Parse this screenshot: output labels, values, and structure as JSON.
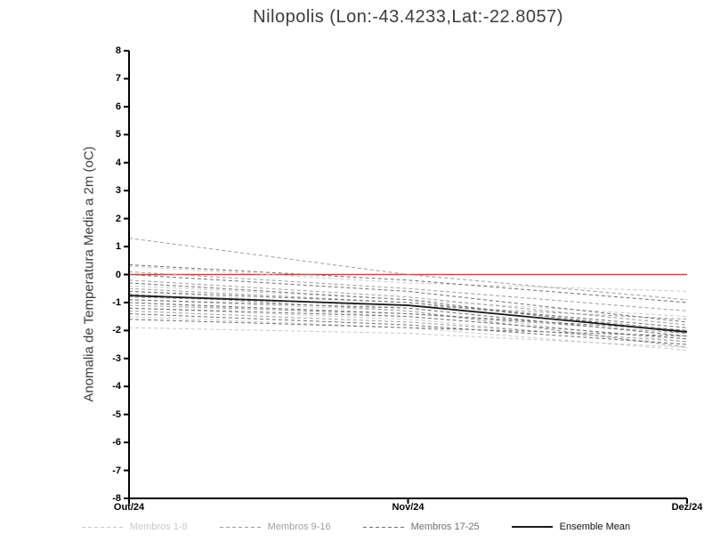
{
  "colors": {
    "zero_line": "#e23c32",
    "mean": "#1a1a1a",
    "group1": "#c9c9c9",
    "group2": "#9e9e9e",
    "group3": "#707070",
    "axis": "#000000"
  },
  "chart_data": {
    "type": "line",
    "title": "Nilopolis (Lon:-43.4233,Lat:-22.8057)",
    "ylabel": "Anomalia de Temperatura Media a 2m (oC)",
    "x_categories": [
      "Out/24",
      "Nov/24",
      "Dez/24"
    ],
    "ylim": [
      -8,
      8
    ],
    "ytick_step": 1,
    "zero_line": 0,
    "grid": false,
    "legend_position": "bottom",
    "groups": [
      {
        "name": "Membros 1-8",
        "color_key": "group1",
        "style": "dashed",
        "series": [
          [
            0.3,
            -0.3,
            -0.6
          ],
          [
            -0.4,
            -0.9,
            -1.5
          ],
          [
            -0.9,
            -1.3,
            -2.4
          ],
          [
            -1.2,
            -1.6,
            -2.5
          ],
          [
            -1.9,
            -2.1,
            -2.6
          ],
          [
            -1.5,
            -1.9,
            -2.7
          ],
          [
            -0.6,
            -1.2,
            -2.2
          ],
          [
            -1.0,
            -1.5,
            -2.3
          ]
        ]
      },
      {
        "name": "Membros 9-16",
        "color_key": "group2",
        "style": "dashed",
        "series": [
          [
            1.3,
            0.0,
            -0.9
          ],
          [
            0.1,
            -0.5,
            -1.3
          ],
          [
            -0.2,
            -0.8,
            -1.8
          ],
          [
            -0.5,
            -1.0,
            -2.0
          ],
          [
            -0.8,
            -1.1,
            -1.6
          ],
          [
            -1.1,
            -1.4,
            -2.1
          ],
          [
            -1.3,
            -1.7,
            -2.4
          ],
          [
            -0.7,
            -1.3,
            -2.6
          ]
        ]
      },
      {
        "name": "Membros 17-25",
        "color_key": "group3",
        "style": "dashed",
        "series": [
          [
            0.35,
            -0.2,
            -1.0
          ],
          [
            0.0,
            -0.6,
            -1.7
          ],
          [
            -0.3,
            -0.9,
            -2.1
          ],
          [
            -0.6,
            -1.0,
            -1.9
          ],
          [
            -0.9,
            -1.2,
            -2.2
          ],
          [
            -1.0,
            -1.4,
            -2.0
          ],
          [
            -1.2,
            -1.5,
            -2.3
          ],
          [
            -1.4,
            -1.8,
            -2.5
          ],
          [
            -1.6,
            -1.9,
            -2.2
          ]
        ]
      },
      {
        "name": "Ensemble Mean",
        "color_key": "mean",
        "style": "solid",
        "series": [
          [
            -0.75,
            -1.1,
            -2.05
          ]
        ]
      }
    ]
  }
}
